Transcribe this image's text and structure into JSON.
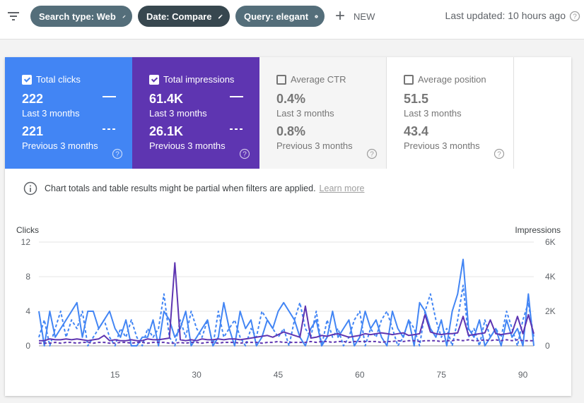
{
  "toolbar": {
    "filter_chips": [
      {
        "label": "Search type: Web",
        "action_icon": "pencil-icon"
      },
      {
        "label": "Date: Compare",
        "action_icon": "pencil-icon"
      },
      {
        "label": "Query: elegant",
        "action_icon": "close-icon"
      }
    ],
    "new_label": "NEW",
    "last_updated": "Last updated: 10 hours ago"
  },
  "metrics": [
    {
      "label": "Total clicks",
      "checked": true,
      "value": "222",
      "value_period": "Last 3 months",
      "compare_value": "221",
      "compare_period": "Previous 3 months",
      "color": "#4285f4"
    },
    {
      "label": "Total impressions",
      "checked": true,
      "value": "61.4K",
      "value_period": "Last 3 months",
      "compare_value": "26.1K",
      "compare_period": "Previous 3 months",
      "color": "#5e35b1"
    },
    {
      "label": "Average CTR",
      "checked": false,
      "value": "0.4%",
      "value_period": "Last 3 months",
      "compare_value": "0.8%",
      "compare_period": "Previous 3 months"
    },
    {
      "label": "Average position",
      "checked": false,
      "value": "51.5",
      "value_period": "Last 3 months",
      "compare_value": "43.4",
      "compare_period": "Previous 3 months"
    }
  ],
  "notice": {
    "text": "Chart totals and table results might be partial when filters are applied.",
    "link": "Learn more"
  },
  "chart_data": {
    "type": "line",
    "ylabel_left": "Clicks",
    "ylabel_right": "Impressions",
    "ylim_left": [
      0,
      12
    ],
    "ylim_right": [
      0,
      6000
    ],
    "y_ticks_left": [
      "12",
      "8",
      "4",
      "0"
    ],
    "y_ticks_right": [
      "6K",
      "4K",
      "2K",
      "0"
    ],
    "x_ticks": [
      "15",
      "30",
      "45",
      "60",
      "75",
      "90"
    ],
    "x_range": [
      1,
      92
    ],
    "grid": true,
    "series": [
      {
        "axis": "left",
        "dashed": false,
        "color": "#4285f4",
        "values": [
          4,
          0,
          4,
          1,
          2,
          3,
          4,
          5,
          1,
          4,
          4,
          2,
          3,
          4,
          2,
          1,
          3,
          0,
          0,
          1,
          1,
          3,
          0,
          4,
          3,
          1,
          2,
          4,
          0,
          1,
          2,
          3,
          0,
          1,
          5,
          2,
          0,
          4,
          2,
          3,
          0,
          1,
          3,
          2,
          4,
          5,
          4,
          3,
          1,
          0,
          2,
          3,
          0,
          1,
          4,
          1,
          2,
          3,
          0,
          1,
          4,
          2,
          3,
          1,
          0,
          4,
          2,
          1,
          3,
          0,
          5,
          4,
          2,
          1,
          3,
          0,
          4,
          6,
          10,
          2,
          1,
          3,
          0,
          1,
          2,
          0,
          3,
          1,
          2,
          0,
          6,
          0
        ]
      },
      {
        "axis": "left",
        "dashed": true,
        "color": "#4285f4",
        "values": [
          1,
          3,
          0,
          2,
          4,
          1,
          3,
          2,
          4,
          0,
          1,
          2,
          3,
          1,
          0,
          2,
          1,
          3,
          1,
          0,
          2,
          1,
          2,
          6,
          1,
          0,
          3,
          1,
          4,
          2,
          1,
          3,
          0,
          4,
          1,
          2,
          3,
          1,
          0,
          2,
          1,
          4,
          3,
          2,
          1,
          2,
          0,
          3,
          5,
          2,
          1,
          4,
          0,
          3,
          1,
          2,
          0,
          1,
          3,
          4,
          0,
          2,
          1,
          3,
          4,
          2,
          0,
          1,
          3,
          2,
          0,
          4,
          6,
          3,
          1,
          2,
          0,
          3,
          7,
          1,
          2,
          0,
          3,
          1,
          2,
          1,
          4,
          2,
          0,
          3,
          5,
          1
        ]
      },
      {
        "axis": "right",
        "dashed": false,
        "color": "#5e35b1",
        "values": [
          300,
          300,
          400,
          350,
          350,
          400,
          350,
          400,
          350,
          300,
          350,
          400,
          600,
          300,
          350,
          300,
          300,
          350,
          300,
          300,
          400,
          350,
          350,
          400,
          450,
          4800,
          350,
          300,
          350,
          300,
          400,
          350,
          350,
          400,
          350,
          400,
          400,
          350,
          400,
          450,
          500,
          550,
          600,
          500,
          650,
          800,
          700,
          600,
          500,
          2300,
          450,
          500,
          600,
          550,
          650,
          700,
          600,
          500,
          550,
          600,
          700,
          650,
          700,
          750,
          700,
          650,
          700,
          750,
          600,
          650,
          700,
          1800,
          800,
          700,
          650,
          700,
          700,
          750,
          1700,
          600,
          650,
          700,
          750,
          1500,
          700,
          650,
          700,
          750,
          1700,
          700,
          1800,
          700
        ]
      },
      {
        "axis": "right",
        "dashed": true,
        "color": "#5e35b1",
        "values": [
          150,
          150,
          150,
          200,
          150,
          200,
          200,
          150,
          200,
          200,
          150,
          200,
          200,
          150,
          150,
          200,
          200,
          150,
          200,
          200,
          150,
          200,
          200,
          200,
          150,
          150,
          200,
          150,
          200,
          200,
          150,
          200,
          200,
          150,
          200,
          200,
          200,
          150,
          200,
          200,
          200,
          150,
          200,
          200,
          250,
          200,
          200,
          200,
          200,
          200,
          250,
          200,
          250,
          250,
          200,
          250,
          250,
          200,
          250,
          250,
          250,
          250,
          250,
          200,
          250,
          250,
          300,
          250,
          300,
          300,
          250,
          300,
          300,
          300,
          250,
          300,
          300,
          350,
          300,
          350,
          300,
          300,
          350,
          300,
          350,
          300,
          350,
          300,
          350,
          300,
          300,
          300
        ]
      }
    ]
  }
}
